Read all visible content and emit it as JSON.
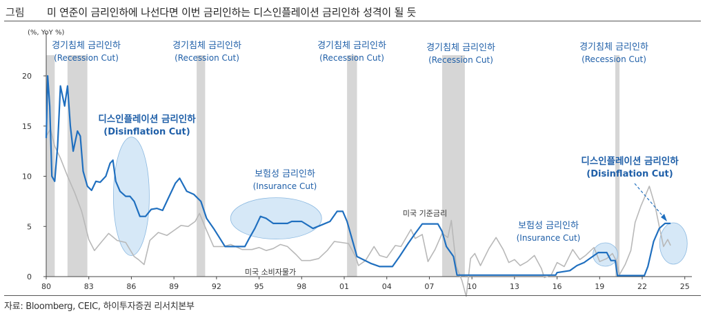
{
  "header": {
    "label": "그림",
    "title": "미 연준이 금리인하에 나선다면 이번 금리인하는 디스인플레이션 금리인하 성격이 될 듯"
  },
  "source": "자료: Bloomberg, CEIC, 하이투자증권 리서치본부",
  "colors": {
    "fed_rate": "#1f6fbf",
    "cpi": "#b8b8b8",
    "recession": "#d6d6d6",
    "annotation": "#1f5fa8",
    "ellipse": "#cfe4f6"
  },
  "chart_data": {
    "type": "line",
    "unit_label": "(%, YoY %)",
    "xlim": [
      1980,
      2025.5
    ],
    "ylim": [
      0,
      21
    ],
    "x_ticks": [
      "80",
      "83",
      "86",
      "89",
      "92",
      "95",
      "98",
      "01",
      "04",
      "07",
      "10",
      "13",
      "16",
      "19",
      "22",
      "25"
    ],
    "y_ticks": [
      "0",
      "5",
      "10",
      "15",
      "20"
    ],
    "grid": false,
    "recessions": [
      [
        1980.0,
        1980.6
      ],
      [
        1981.5,
        1982.9
      ],
      [
        1990.6,
        1991.2
      ],
      [
        2001.2,
        2001.9
      ],
      [
        2007.9,
        2009.5
      ],
      [
        2020.1,
        2020.4
      ]
    ],
    "series": [
      {
        "name": "미국 기준금리",
        "role": "fed",
        "points": [
          [
            1980.0,
            13.8
          ],
          [
            1980.1,
            20.0
          ],
          [
            1980.25,
            17.0
          ],
          [
            1980.4,
            10.0
          ],
          [
            1980.6,
            9.5
          ],
          [
            1980.8,
            13.0
          ],
          [
            1981.0,
            19.0
          ],
          [
            1981.3,
            17.0
          ],
          [
            1981.5,
            19.0
          ],
          [
            1981.7,
            15.0
          ],
          [
            1981.9,
            12.5
          ],
          [
            1982.2,
            14.5
          ],
          [
            1982.4,
            14.0
          ],
          [
            1982.6,
            10.5
          ],
          [
            1982.9,
            9.0
          ],
          [
            1983.2,
            8.6
          ],
          [
            1983.5,
            9.5
          ],
          [
            1983.8,
            9.4
          ],
          [
            1984.2,
            10.0
          ],
          [
            1984.5,
            11.3
          ],
          [
            1984.7,
            11.6
          ],
          [
            1984.9,
            9.5
          ],
          [
            1985.2,
            8.5
          ],
          [
            1985.6,
            8.0
          ],
          [
            1985.9,
            8.0
          ],
          [
            1986.2,
            7.5
          ],
          [
            1986.6,
            6.0
          ],
          [
            1987.0,
            6.0
          ],
          [
            1987.4,
            6.7
          ],
          [
            1987.8,
            6.8
          ],
          [
            1988.2,
            6.6
          ],
          [
            1988.6,
            7.8
          ],
          [
            1989.1,
            9.3
          ],
          [
            1989.4,
            9.8
          ],
          [
            1989.9,
            8.5
          ],
          [
            1990.4,
            8.2
          ],
          [
            1990.9,
            7.5
          ],
          [
            1991.3,
            5.8
          ],
          [
            1991.8,
            4.8
          ],
          [
            1992.2,
            3.9
          ],
          [
            1992.6,
            3.0
          ],
          [
            1993.5,
            3.0
          ],
          [
            1994.0,
            3.0
          ],
          [
            1994.3,
            3.8
          ],
          [
            1994.7,
            4.8
          ],
          [
            1995.1,
            6.0
          ],
          [
            1995.5,
            5.8
          ],
          [
            1996.0,
            5.3
          ],
          [
            1997.0,
            5.3
          ],
          [
            1997.3,
            5.5
          ],
          [
            1998.0,
            5.5
          ],
          [
            1998.8,
            4.8
          ],
          [
            1999.5,
            5.2
          ],
          [
            2000.0,
            5.5
          ],
          [
            2000.5,
            6.5
          ],
          [
            2000.9,
            6.5
          ],
          [
            2001.2,
            5.5
          ],
          [
            2001.5,
            4.0
          ],
          [
            2001.9,
            2.0
          ],
          [
            2002.9,
            1.3
          ],
          [
            2003.5,
            1.0
          ],
          [
            2004.4,
            1.0
          ],
          [
            2004.9,
            2.0
          ],
          [
            2005.5,
            3.3
          ],
          [
            2006.0,
            4.3
          ],
          [
            2006.5,
            5.25
          ],
          [
            2007.6,
            5.25
          ],
          [
            2007.9,
            4.5
          ],
          [
            2008.2,
            3.0
          ],
          [
            2008.7,
            2.0
          ],
          [
            2008.95,
            0.15
          ],
          [
            2015.9,
            0.15
          ],
          [
            2016.0,
            0.4
          ],
          [
            2016.9,
            0.6
          ],
          [
            2017.4,
            1.1
          ],
          [
            2017.9,
            1.4
          ],
          [
            2018.4,
            1.9
          ],
          [
            2018.9,
            2.4
          ],
          [
            2019.5,
            2.4
          ],
          [
            2019.8,
            1.6
          ],
          [
            2020.1,
            1.6
          ],
          [
            2020.25,
            0.1
          ],
          [
            2022.15,
            0.1
          ],
          [
            2022.4,
            1.0
          ],
          [
            2022.8,
            3.5
          ],
          [
            2023.2,
            4.8
          ],
          [
            2023.6,
            5.3
          ],
          [
            2024.0,
            5.3
          ]
        ]
      },
      {
        "name": "미국 소비자물가",
        "role": "cpi",
        "points": [
          [
            1980.0,
            14.0
          ],
          [
            1980.3,
            14.7
          ],
          [
            1980.6,
            13.0
          ],
          [
            1981.0,
            11.8
          ],
          [
            1981.5,
            10.0
          ],
          [
            1982.0,
            8.4
          ],
          [
            1982.5,
            6.5
          ],
          [
            1983.0,
            3.7
          ],
          [
            1983.4,
            2.6
          ],
          [
            1983.8,
            3.3
          ],
          [
            1984.4,
            4.3
          ],
          [
            1985.0,
            3.6
          ],
          [
            1985.6,
            3.4
          ],
          [
            1986.2,
            2.0
          ],
          [
            1986.5,
            1.7
          ],
          [
            1986.9,
            1.2
          ],
          [
            1987.3,
            3.6
          ],
          [
            1987.9,
            4.4
          ],
          [
            1988.5,
            4.1
          ],
          [
            1989.0,
            4.6
          ],
          [
            1989.5,
            5.1
          ],
          [
            1990.0,
            5.0
          ],
          [
            1990.5,
            5.5
          ],
          [
            1990.8,
            6.3
          ],
          [
            1991.3,
            4.6
          ],
          [
            1991.8,
            3.0
          ],
          [
            1992.5,
            3.0
          ],
          [
            1993.0,
            3.2
          ],
          [
            1993.8,
            2.7
          ],
          [
            1994.5,
            2.7
          ],
          [
            1995.0,
            2.9
          ],
          [
            1995.5,
            2.6
          ],
          [
            1996.0,
            2.8
          ],
          [
            1996.5,
            3.2
          ],
          [
            1997.0,
            3.0
          ],
          [
            1997.6,
            2.2
          ],
          [
            1998.0,
            1.6
          ],
          [
            1998.6,
            1.6
          ],
          [
            1999.2,
            1.8
          ],
          [
            1999.8,
            2.6
          ],
          [
            2000.3,
            3.5
          ],
          [
            2000.8,
            3.4
          ],
          [
            2001.3,
            3.3
          ],
          [
            2001.8,
            2.0
          ],
          [
            2002.0,
            1.1
          ],
          [
            2002.5,
            1.6
          ],
          [
            2003.1,
            3.0
          ],
          [
            2003.5,
            2.1
          ],
          [
            2004.0,
            1.9
          ],
          [
            2004.6,
            3.1
          ],
          [
            2005.0,
            3.0
          ],
          [
            2005.7,
            4.7
          ],
          [
            2006.0,
            3.8
          ],
          [
            2006.5,
            4.2
          ],
          [
            2006.9,
            1.5
          ],
          [
            2007.4,
            2.7
          ],
          [
            2007.9,
            4.3
          ],
          [
            2008.3,
            3.9
          ],
          [
            2008.55,
            5.6
          ],
          [
            2008.9,
            1.0
          ],
          [
            2009.3,
            -0.4
          ],
          [
            2009.6,
            -2.0
          ],
          [
            2009.9,
            1.8
          ],
          [
            2010.2,
            2.3
          ],
          [
            2010.6,
            1.1
          ],
          [
            2011.2,
            2.8
          ],
          [
            2011.7,
            3.9
          ],
          [
            2012.2,
            2.7
          ],
          [
            2012.6,
            1.4
          ],
          [
            2013.0,
            1.7
          ],
          [
            2013.4,
            1.1
          ],
          [
            2013.9,
            1.5
          ],
          [
            2014.4,
            2.1
          ],
          [
            2014.9,
            0.8
          ],
          [
            2015.1,
            -0.1
          ],
          [
            2015.6,
            0.2
          ],
          [
            2016.0,
            1.4
          ],
          [
            2016.5,
            1.0
          ],
          [
            2017.1,
            2.7
          ],
          [
            2017.6,
            1.7
          ],
          [
            2018.0,
            2.1
          ],
          [
            2018.6,
            2.9
          ],
          [
            2019.0,
            1.5
          ],
          [
            2019.5,
            1.8
          ],
          [
            2019.9,
            2.3
          ],
          [
            2020.2,
            1.5
          ],
          [
            2020.4,
            0.2
          ],
          [
            2020.8,
            1.2
          ],
          [
            2021.2,
            2.6
          ],
          [
            2021.5,
            5.4
          ],
          [
            2021.9,
            7.0
          ],
          [
            2022.5,
            9.0
          ],
          [
            2022.9,
            7.1
          ],
          [
            2023.2,
            5.0
          ],
          [
            2023.5,
            3.0
          ],
          [
            2023.8,
            3.7
          ],
          [
            2024.0,
            3.1
          ]
        ]
      }
    ],
    "annotations": [
      {
        "kind": "recession",
        "lines": [
          "경기침체 금리인하",
          "(Recession Cut)"
        ]
      },
      {
        "kind": "recession",
        "lines": [
          "경기침체 금리인하",
          "(Recession Cut)"
        ]
      },
      {
        "kind": "recession",
        "lines": [
          "경기침체 금리인하",
          "(Recession Cut)"
        ]
      },
      {
        "kind": "recession",
        "lines": [
          "경기침체 금리인하",
          "(Recession Cut)"
        ]
      },
      {
        "kind": "recession",
        "lines": [
          "경기침체 금리인하",
          "(Recession Cut)"
        ]
      },
      {
        "kind": "disinflation",
        "lines": [
          "디스인플레이션 금리인하",
          "(Disinflation Cut)"
        ]
      },
      {
        "kind": "disinflation",
        "lines": [
          "디스인플레이션 금리인하",
          "(Disinflation Cut)"
        ]
      },
      {
        "kind": "insurance",
        "lines": [
          "보험성 금리인하",
          "(Insurance Cut)"
        ]
      },
      {
        "kind": "insurance",
        "lines": [
          "보험성 금리인하",
          "(Insurance Cut)"
        ]
      }
    ],
    "series_labels": [
      {
        "series": "미국 기준금리"
      },
      {
        "series": "미국 소비자물가"
      }
    ]
  }
}
